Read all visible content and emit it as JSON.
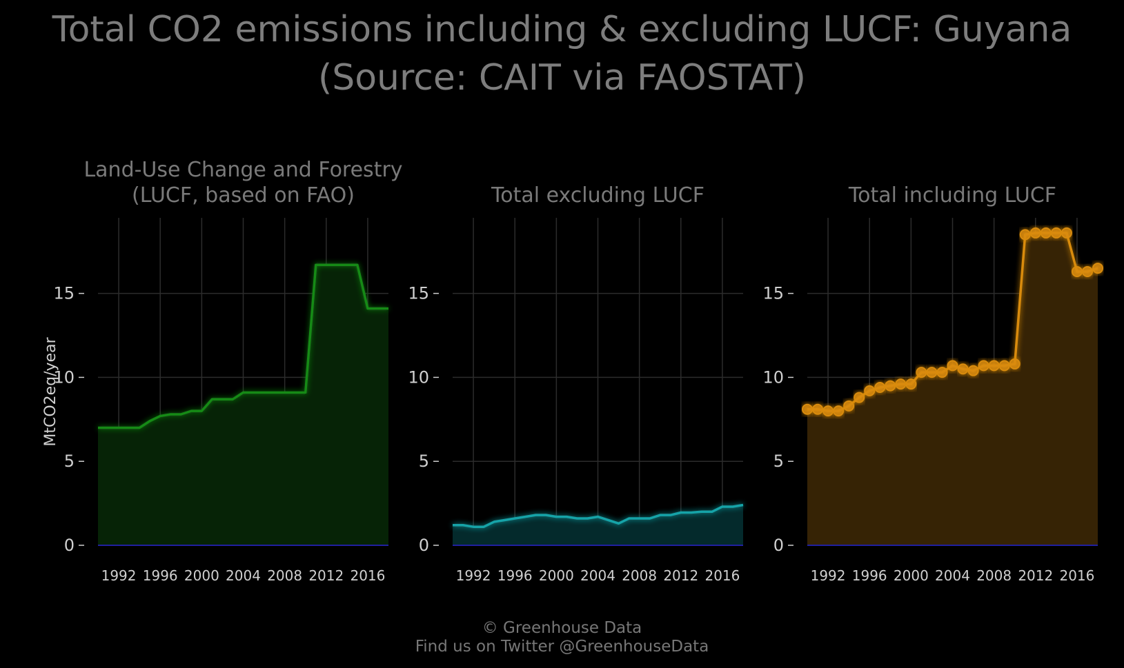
{
  "title": {
    "line1": "Total CO2 emissions including & excluding LUCF: Guyana",
    "line2": "(Source: CAIT via FAOSTAT)"
  },
  "footer": {
    "line1": "© Greenhouse Data",
    "line2": "Find us on Twitter @GreenhouseData"
  },
  "chart_data": [
    {
      "type": "area",
      "title_lines": [
        "Land-Use Change and Forestry",
        "(LUCF, based on FAO)"
      ],
      "ylabel": "MtCO2eq/year",
      "xlim": [
        1990,
        2018
      ],
      "ylim": [
        0,
        19.5
      ],
      "yticks": [
        0,
        5,
        10,
        15
      ],
      "xticks": [
        1992,
        1996,
        2000,
        2004,
        2008,
        2012,
        2016
      ],
      "grid": true,
      "color": "#138a13",
      "fill": "#062306",
      "markers": false,
      "x": [
        1990,
        1991,
        1992,
        1993,
        1994,
        1995,
        1996,
        1997,
        1998,
        1999,
        2000,
        2001,
        2002,
        2003,
        2004,
        2005,
        2006,
        2007,
        2008,
        2009,
        2010,
        2011,
        2012,
        2013,
        2014,
        2015,
        2016,
        2017,
        2018
      ],
      "values": [
        7.0,
        7.0,
        7.0,
        7.0,
        7.0,
        7.4,
        7.7,
        7.8,
        7.8,
        8.0,
        8.0,
        8.7,
        8.7,
        8.7,
        9.1,
        9.1,
        9.1,
        9.1,
        9.1,
        9.1,
        9.1,
        16.7,
        16.7,
        16.7,
        16.7,
        16.7,
        14.1,
        14.1,
        14.1
      ]
    },
    {
      "type": "area",
      "title_lines": [
        "Total excluding LUCF"
      ],
      "ylabel": "",
      "xlim": [
        1990,
        2018
      ],
      "ylim": [
        0,
        19.5
      ],
      "yticks": [
        0,
        5,
        10,
        15
      ],
      "xticks": [
        1992,
        1996,
        2000,
        2004,
        2008,
        2012,
        2016
      ],
      "grid": true,
      "color": "#13a3a8",
      "fill": "#042a2c",
      "markers": false,
      "x": [
        1990,
        1991,
        1992,
        1993,
        1994,
        1995,
        1996,
        1997,
        1998,
        1999,
        2000,
        2001,
        2002,
        2003,
        2004,
        2005,
        2006,
        2007,
        2008,
        2009,
        2010,
        2011,
        2012,
        2013,
        2014,
        2015,
        2016,
        2017,
        2018
      ],
      "values": [
        1.2,
        1.2,
        1.1,
        1.1,
        1.4,
        1.5,
        1.6,
        1.7,
        1.8,
        1.8,
        1.7,
        1.7,
        1.6,
        1.6,
        1.7,
        1.5,
        1.3,
        1.6,
        1.6,
        1.6,
        1.8,
        1.8,
        1.95,
        1.95,
        2.0,
        2.0,
        2.3,
        2.3,
        2.4
      ]
    },
    {
      "type": "area",
      "title_lines": [
        "Total including LUCF"
      ],
      "ylabel": "",
      "xlim": [
        1990,
        2018
      ],
      "ylim": [
        0,
        19.5
      ],
      "yticks": [
        0,
        5,
        10,
        15
      ],
      "xticks": [
        1992,
        1996,
        2000,
        2004,
        2008,
        2012,
        2016
      ],
      "grid": true,
      "color": "#d98b0e",
      "fill": "#362305",
      "markers": true,
      "x": [
        1990,
        1991,
        1992,
        1993,
        1994,
        1995,
        1996,
        1997,
        1998,
        1999,
        2000,
        2001,
        2002,
        2003,
        2004,
        2005,
        2006,
        2007,
        2008,
        2009,
        2010,
        2011,
        2012,
        2013,
        2014,
        2015,
        2016,
        2017,
        2018
      ],
      "values": [
        8.1,
        8.1,
        8.0,
        8.0,
        8.3,
        8.8,
        9.2,
        9.4,
        9.5,
        9.6,
        9.6,
        10.3,
        10.3,
        10.3,
        10.7,
        10.5,
        10.4,
        10.7,
        10.7,
        10.7,
        10.8,
        18.5,
        18.6,
        18.6,
        18.6,
        18.6,
        16.3,
        16.3,
        16.5
      ]
    }
  ]
}
